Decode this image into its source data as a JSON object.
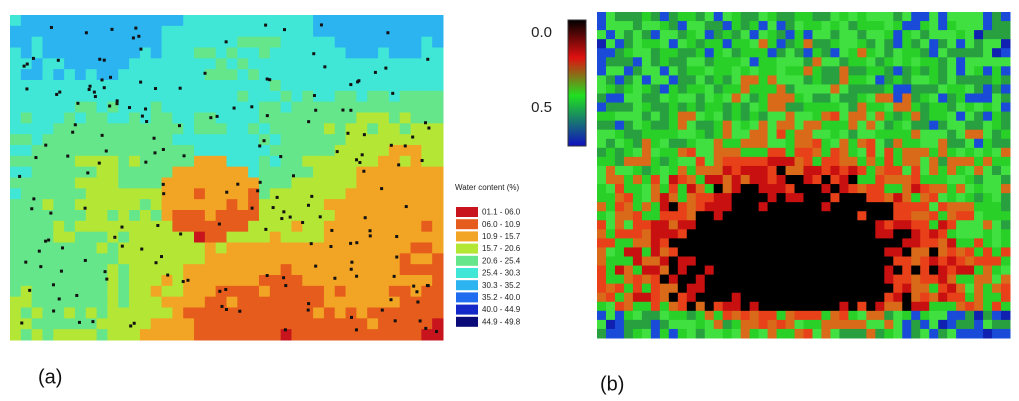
{
  "panel_a": {
    "label": "(a)",
    "legend": {
      "title": "Water content (%)",
      "items": [
        {
          "label": "01.1 - 06.0",
          "color": "#c8141c"
        },
        {
          "label": "06.0 - 10.9",
          "color": "#e65c1c"
        },
        {
          "label": "10.9 - 15.7",
          "color": "#f2a424"
        },
        {
          "label": "15.7 - 20.6",
          "color": "#b4e636"
        },
        {
          "label": "20.6 - 25.4",
          "color": "#66e68a"
        },
        {
          "label": "25.4 - 30.3",
          "color": "#40e6d6"
        },
        {
          "label": "30.3 - 35.2",
          "color": "#2cb4f0"
        },
        {
          "label": "35.2 - 40.0",
          "color": "#1e6cf0"
        },
        {
          "label": "40.0 - 44.9",
          "color": "#1428c8"
        },
        {
          "label": "44.9 - 49.8",
          "color": "#0a0a78"
        }
      ]
    }
  },
  "panel_b": {
    "label": "(b)",
    "colorbar": {
      "labels": [
        "0.0",
        "0.5"
      ]
    }
  }
}
